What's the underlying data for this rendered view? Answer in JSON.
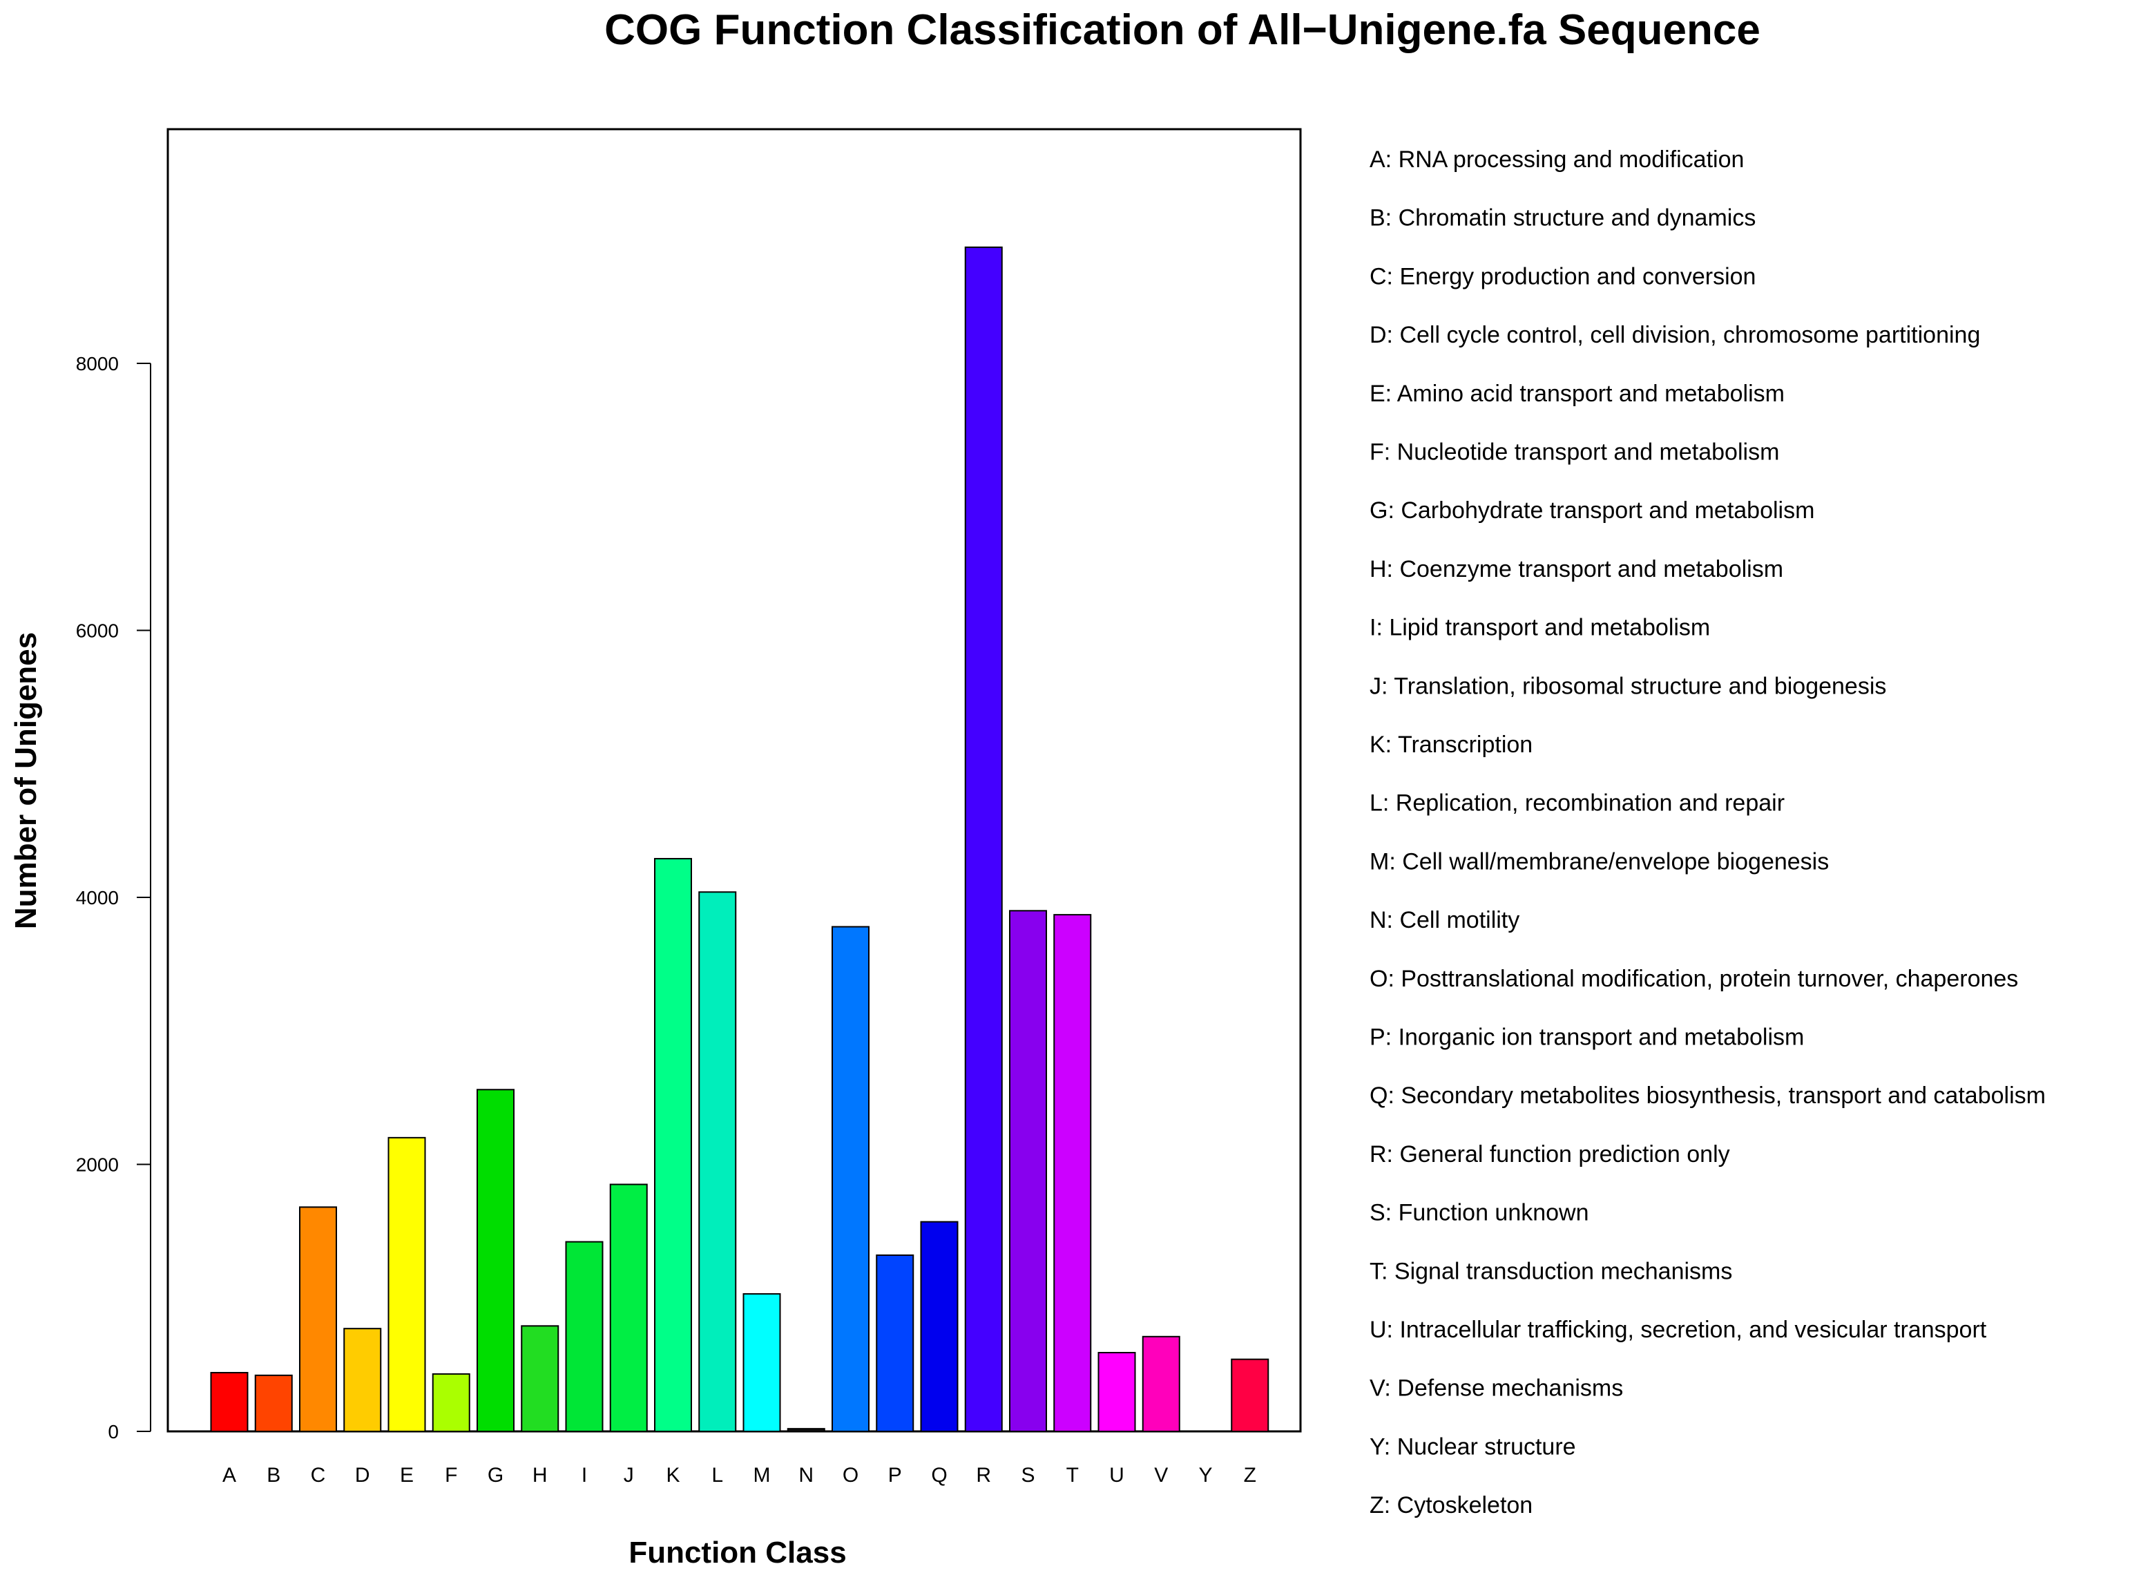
{
  "chart_data": {
    "type": "bar",
    "title": "COG Function Classification of All−Unigene.fa Sequence",
    "xlabel": "Function Class",
    "ylabel": "Number of Unigenes",
    "ylim": [
      0,
      10000
    ],
    "yticks": [
      0,
      2000,
      4000,
      6000,
      8000
    ],
    "grid": false,
    "legend_position": "right",
    "categories": [
      "A",
      "B",
      "C",
      "D",
      "E",
      "F",
      "G",
      "H",
      "I",
      "J",
      "K",
      "L",
      "M",
      "N",
      "O",
      "P",
      "Q",
      "R",
      "S",
      "T",
      "U",
      "V",
      "Y",
      "Z"
    ],
    "values": [
      440,
      420,
      1680,
      770,
      2200,
      430,
      2560,
      790,
      1420,
      1850,
      4290,
      4040,
      1030,
      20,
      3780,
      1320,
      1570,
      8870,
      3900,
      3870,
      590,
      710,
      0,
      540
    ],
    "colors": [
      "#ff0000",
      "#ff4400",
      "#ff8800",
      "#ffcc00",
      "#ffff00",
      "#aaff00",
      "#00dd00",
      "#22dd22",
      "#00e636",
      "#00ee44",
      "#00ff88",
      "#00eebb",
      "#00ffff",
      "#111111",
      "#0077ff",
      "#0044ff",
      "#0000ee",
      "#4400ff",
      "#8800ee",
      "#cc00ff",
      "#ff00ff",
      "#ff00bb",
      "#ff0077",
      "#ff0044"
    ],
    "legend": [
      "A: RNA processing and modification",
      "B: Chromatin structure and dynamics",
      "C: Energy production and conversion",
      "D: Cell cycle control, cell division, chromosome partitioning",
      "E: Amino acid transport and metabolism",
      "F: Nucleotide transport and metabolism",
      "G: Carbohydrate transport and metabolism",
      "H: Coenzyme transport and metabolism",
      "I: Lipid transport and metabolism",
      "J: Translation, ribosomal structure and biogenesis",
      "K: Transcription",
      "L: Replication, recombination and repair",
      "M: Cell wall/membrane/envelope biogenesis",
      "N: Cell motility",
      "O: Posttranslational modification, protein turnover, chaperones",
      "P: Inorganic ion transport and metabolism",
      "Q: Secondary metabolites biosynthesis, transport and catabolism",
      "R: General function prediction only",
      "S: Function unknown",
      "T: Signal transduction mechanisms",
      "U: Intracellular trafficking, secretion, and vesicular transport",
      "V: Defense mechanisms",
      "Y: Nuclear structure",
      "Z: Cytoskeleton"
    ]
  }
}
